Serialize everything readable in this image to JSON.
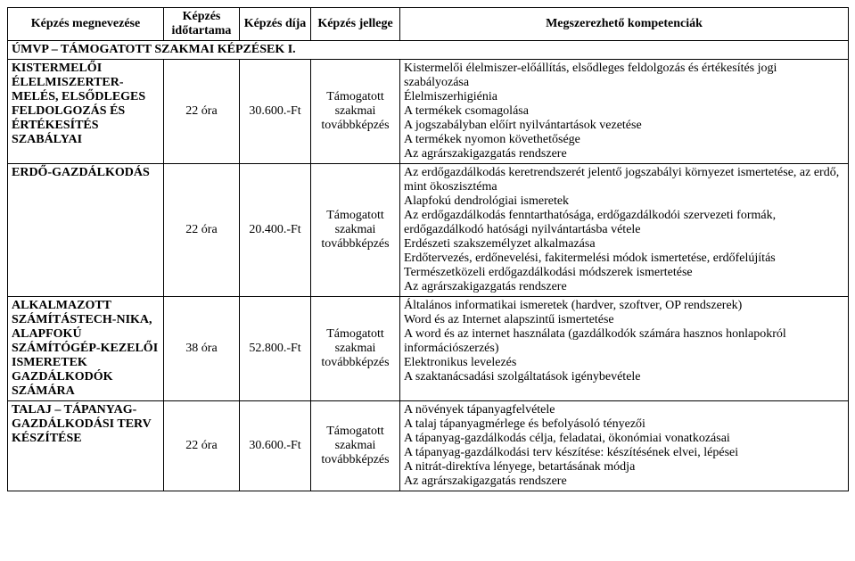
{
  "headers": {
    "name": "Képzés megnevezése",
    "duration": "Képzés időtartama",
    "fee": "Képzés díja",
    "type": "Képzés jellege",
    "competencies": "Megszerezhető kompetenciák"
  },
  "section_title": "ÚMVP – TÁMOGATOTT SZAKMAI KÉPZÉSEK I.",
  "rows": [
    {
      "name": "KISTERMELŐI ÉLELMISZERTER-MELÉS, ELSŐDLEGES FELDOLGOZÁS ÉS ÉRTÉKESÍTÉS SZABÁLYAI",
      "duration": "22 óra",
      "fee": "30.600.-Ft",
      "type": "Támogatott szakmai továbbképzés",
      "competencies": "Kistermelői élelmiszer-előállítás, elsődleges feldolgozás és értékesítés jogi szabályozása\nÉlelmiszerhigiénia\nA termékek csomagolása\nA jogszabályban előírt nyilvántartások vezetése\nA termékek nyomon követhetősége\nAz agrárszakigazgatás rendszere"
    },
    {
      "name": "ERDŐ-GAZDÁLKODÁS",
      "duration": "22 óra",
      "fee": "20.400.-Ft",
      "type": "Támogatott szakmai továbbképzés",
      "competencies": "Az erdőgazdálkodás keretrendszerét jelentő jogszabályi környezet ismertetése, az erdő, mint ökoszisztéma\nAlapfokú dendrológiai ismeretek\nAz erdőgazdálkodás fenntarthatósága, erdőgazdálkodói szervezeti formák, erdőgazdálkodó hatósági nyilvántartásba vétele\nErdészeti szakszemélyzet alkalmazása\nErdőtervezés, erdőnevelési, fakitermelési módok ismertetése, erdőfelújítás\nTermészetközeli erdőgazdálkodási módszerek ismertetése\nAz agrárszakigazgatás rendszere"
    },
    {
      "name": "ALKALMAZOTT SZÁMÍTÁSTECH-NIKA, ALAPFOKÚ SZÁMÍTÓGÉP-KEZELŐI ISMERETEK GAZDÁLKODÓK SZÁMÁRA",
      "duration": "38 óra",
      "fee": "52.800.-Ft",
      "type": "Támogatott szakmai továbbképzés",
      "competencies": "Általános informatikai ismeretek (hardver, szoftver, OP rendszerek)\nWord és az Internet alapszintű ismertetése\nA word és az internet használata (gazdálkodók számára hasznos honlapokról információszerzés)\nElektronikus levelezés\nA szaktanácsadási szolgáltatások igénybevétele"
    },
    {
      "name": "TALAJ – TÁPANYAG-GAZDÁLKODÁSI TERV KÉSZÍTÉSE",
      "duration": "22 óra",
      "fee": "30.600.-Ft",
      "type": "Támogatott szakmai továbbképzés",
      "competencies": "A növények tápanyagfelvétele\nA talaj tápanyagmérlege és befolyásoló tényezői\nA tápanyag-gazdálkodás célja, feladatai, ökonómiai vonatkozásai\nA tápanyag-gazdálkodási terv készítése: készítésének elvei, lépései\nA nitrát-direktíva lényege, betartásának módja\nAz agrárszakigazgatás rendszere"
    }
  ]
}
